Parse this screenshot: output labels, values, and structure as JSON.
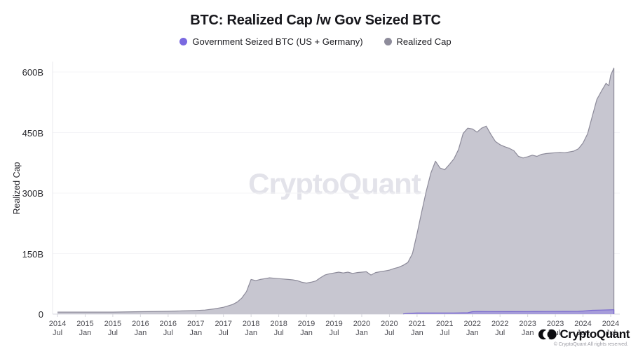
{
  "title": "BTC: Realized Cap /w Gov Seized BTC",
  "legend": {
    "items": [
      {
        "label": "Government Seized BTC (US + Germany)",
        "color": "#7a69e0"
      },
      {
        "label": "Realized Cap",
        "color": "#8e8c9b"
      }
    ]
  },
  "watermark": "CryptoQuant",
  "logo": {
    "text": "CryptoQuant",
    "fineprint": "© CryptoQuant All rights reserved."
  },
  "chart_data": {
    "type": "area",
    "title": "BTC: Realized Cap /w Gov Seized BTC",
    "ylabel": "Realized Cap",
    "unit": "USD billions",
    "ylim": [
      0,
      620
    ],
    "grid": "horizontal-only",
    "legend_position": "top-center",
    "x_start": "2014-07",
    "x_end": "2024-07",
    "yticks": [
      {
        "value": 0,
        "label": "0"
      },
      {
        "value": 150,
        "label": "150B"
      },
      {
        "value": 300,
        "label": "300B"
      },
      {
        "value": 450,
        "label": "450B"
      },
      {
        "value": 600,
        "label": "600B"
      }
    ],
    "xticks": [
      {
        "year": "2014",
        "month": "Jul"
      },
      {
        "year": "2015",
        "month": "Jan"
      },
      {
        "year": "2015",
        "month": "Jul"
      },
      {
        "year": "2016",
        "month": "Jan"
      },
      {
        "year": "2016",
        "month": "Jul"
      },
      {
        "year": "2017",
        "month": "Jan"
      },
      {
        "year": "2017",
        "month": "Jul"
      },
      {
        "year": "2018",
        "month": "Jan"
      },
      {
        "year": "2018",
        "month": "Jul"
      },
      {
        "year": "2019",
        "month": "Jan"
      },
      {
        "year": "2019",
        "month": "Jul"
      },
      {
        "year": "2020",
        "month": "Jan"
      },
      {
        "year": "2020",
        "month": "Jul"
      },
      {
        "year": "2021",
        "month": "Jan"
      },
      {
        "year": "2021",
        "month": "Jul"
      },
      {
        "year": "2022",
        "month": "Jan"
      },
      {
        "year": "2022",
        "month": "Jul"
      },
      {
        "year": "2023",
        "month": "Jan"
      },
      {
        "year": "2023",
        "month": "Jul"
      },
      {
        "year": "2024",
        "month": "Jan"
      },
      {
        "year": "2024",
        "month": "Jul"
      }
    ],
    "series": [
      {
        "name": "Realized Cap",
        "fill": "#c7c6d0",
        "stroke": "#8d8b9a",
        "points_note": "x = months since 2014-07, y = USD billions",
        "points": [
          [
            0,
            5
          ],
          [
            6,
            5
          ],
          [
            12,
            5
          ],
          [
            18,
            6
          ],
          [
            24,
            7
          ],
          [
            27,
            8
          ],
          [
            30,
            9
          ],
          [
            32,
            10
          ],
          [
            34,
            13
          ],
          [
            36,
            17
          ],
          [
            38,
            24
          ],
          [
            39,
            30
          ],
          [
            40,
            40
          ],
          [
            41,
            56
          ],
          [
            42,
            86
          ],
          [
            43,
            83
          ],
          [
            44,
            86
          ],
          [
            45,
            88
          ],
          [
            46,
            90
          ],
          [
            47,
            89
          ],
          [
            48,
            88
          ],
          [
            49,
            87
          ],
          [
            50,
            86
          ],
          [
            51,
            85
          ],
          [
            52,
            83
          ],
          [
            53,
            79
          ],
          [
            54,
            77
          ],
          [
            55,
            79
          ],
          [
            56,
            82
          ],
          [
            57,
            90
          ],
          [
            58,
            97
          ],
          [
            59,
            100
          ],
          [
            60,
            102
          ],
          [
            61,
            104
          ],
          [
            62,
            102
          ],
          [
            63,
            104
          ],
          [
            64,
            101
          ],
          [
            65,
            103
          ],
          [
            66,
            104
          ],
          [
            67,
            105
          ],
          [
            68,
            97
          ],
          [
            69,
            103
          ],
          [
            70,
            105
          ],
          [
            71,
            107
          ],
          [
            72,
            109
          ],
          [
            73,
            113
          ],
          [
            74,
            116
          ],
          [
            75,
            121
          ],
          [
            76,
            128
          ],
          [
            77,
            150
          ],
          [
            78,
            200
          ],
          [
            79,
            253
          ],
          [
            80,
            305
          ],
          [
            81,
            350
          ],
          [
            82,
            379
          ],
          [
            83,
            362
          ],
          [
            84,
            358
          ],
          [
            85,
            371
          ],
          [
            86,
            385
          ],
          [
            87,
            408
          ],
          [
            88,
            448
          ],
          [
            89,
            461
          ],
          [
            90,
            459
          ],
          [
            91,
            451
          ],
          [
            92,
            461
          ],
          [
            93,
            466
          ],
          [
            94,
            446
          ],
          [
            95,
            428
          ],
          [
            96,
            420
          ],
          [
            97,
            415
          ],
          [
            98,
            411
          ],
          [
            99,
            405
          ],
          [
            100,
            391
          ],
          [
            101,
            387
          ],
          [
            102,
            390
          ],
          [
            103,
            394
          ],
          [
            104,
            391
          ],
          [
            105,
            396
          ],
          [
            106,
            398
          ],
          [
            107,
            399
          ],
          [
            108,
            400
          ],
          [
            109,
            401
          ],
          [
            110,
            400
          ],
          [
            111,
            402
          ],
          [
            112,
            404
          ],
          [
            113,
            410
          ],
          [
            114,
            424
          ],
          [
            115,
            447
          ],
          [
            116,
            490
          ],
          [
            117,
            532
          ],
          [
            118,
            553
          ],
          [
            119,
            572
          ],
          [
            119.6,
            566
          ],
          [
            120,
            592
          ],
          [
            120.7,
            610
          ]
        ]
      },
      {
        "name": "Government Seized BTC (US + Germany)",
        "fill": "#a69cda",
        "stroke": "#7a69ce",
        "points_note": "x = months since 2014-07, y = USD billions",
        "points": [
          [
            75,
            0.5
          ],
          [
            76,
            2
          ],
          [
            78,
            2.7
          ],
          [
            82,
            3
          ],
          [
            86,
            3
          ],
          [
            89,
            3.5
          ],
          [
            90,
            6
          ],
          [
            91,
            6.6
          ],
          [
            94,
            6.4
          ],
          [
            98,
            6.2
          ],
          [
            102,
            6.5
          ],
          [
            106,
            6.6
          ],
          [
            110,
            6.8
          ],
          [
            113,
            7
          ],
          [
            114,
            7.6
          ],
          [
            116,
            9.6
          ],
          [
            118,
            10
          ],
          [
            120,
            10.5
          ],
          [
            120.7,
            11
          ]
        ]
      }
    ],
    "axis_colors": {
      "gridline": "#f4f4f7",
      "baseline": "#dadae0",
      "yaxis_line": "#e8e8ed",
      "tickmark": "#d6d6dc"
    }
  }
}
